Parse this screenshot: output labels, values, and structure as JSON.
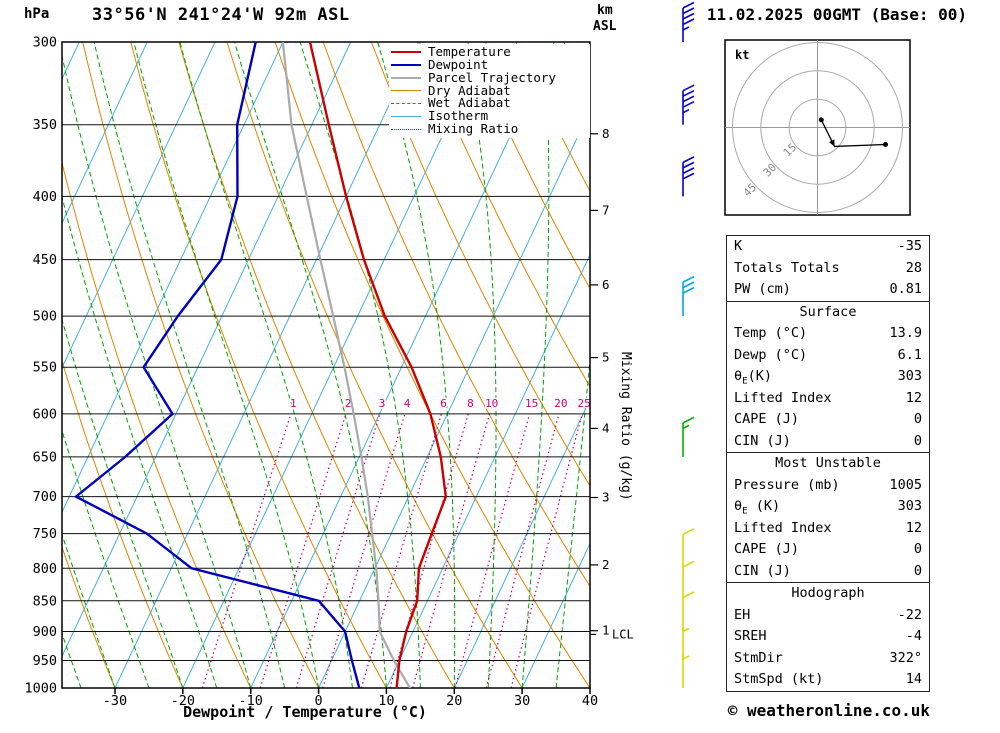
{
  "header": {
    "pressure_unit": "hPa",
    "station_title": "33°56'N 241°24'W 92m ASL",
    "km_label": "km",
    "asl_label": "ASL",
    "datetime": "11.02.2025 00GMT (Base: 00)"
  },
  "footer": {
    "xlabel": "Dewpoint / Temperature (°C)",
    "copyright": "© weatheronline.co.uk"
  },
  "legend": {
    "items": [
      {
        "label": "Temperature",
        "color": "#cc0000",
        "dash": "solid",
        "width": 2.5
      },
      {
        "label": "Dewpoint",
        "color": "#0000bb",
        "dash": "solid",
        "width": 2.5
      },
      {
        "label": "Parcel Trajectory",
        "color": "#aaaaaa",
        "dash": "solid",
        "width": 2.5
      },
      {
        "label": "Dry Adiabat",
        "color": "#dd8500",
        "dash": "solid",
        "width": 1.5
      },
      {
        "label": "Wet Adiabat",
        "color": "#00a300",
        "dash": "dashed",
        "width": 1.5
      },
      {
        "label": "Isotherm",
        "color": "#44b0e0",
        "dash": "solid",
        "width": 1.5
      },
      {
        "label": "Mixing Ratio",
        "color": "#cc0077",
        "dash": "dotted",
        "width": 1.5
      }
    ]
  },
  "chart_data": {
    "type": "skewt-log-p",
    "pressure_ticks_hpa": [
      300,
      350,
      400,
      450,
      500,
      550,
      600,
      650,
      700,
      750,
      800,
      850,
      900,
      950,
      1000
    ],
    "temp_ticks_c": [
      -30,
      -20,
      -10,
      0,
      10,
      20,
      30,
      40
    ],
    "km_asl_ticks": [
      1,
      2,
      3,
      4,
      5,
      6,
      7,
      8
    ],
    "lcl": {
      "label": "LCL",
      "pressure_hpa": 905
    },
    "mixing_ratio_label": "Mixing Ratio (g/kg)",
    "mixing_ratio_g_kg": [
      1,
      2,
      3,
      4,
      6,
      8,
      10,
      15,
      20,
      25
    ],
    "temperature_profile_p_c": [
      [
        1000,
        11.5
      ],
      [
        950,
        10
      ],
      [
        900,
        9
      ],
      [
        850,
        8.5
      ],
      [
        800,
        6.5
      ],
      [
        750,
        6
      ],
      [
        700,
        5.5
      ],
      [
        650,
        2
      ],
      [
        600,
        -2.5
      ],
      [
        550,
        -8.5
      ],
      [
        500,
        -16
      ],
      [
        450,
        -23
      ],
      [
        400,
        -30
      ],
      [
        350,
        -37.5
      ],
      [
        300,
        -46
      ]
    ],
    "dewpoint_profile_p_c": [
      [
        1000,
        6
      ],
      [
        950,
        3
      ],
      [
        900,
        0
      ],
      [
        850,
        -6
      ],
      [
        800,
        -27
      ],
      [
        750,
        -36
      ],
      [
        700,
        -49
      ],
      [
        650,
        -44.5
      ],
      [
        600,
        -40.5
      ],
      [
        550,
        -48
      ],
      [
        500,
        -46.5
      ],
      [
        450,
        -44
      ],
      [
        400,
        -46
      ],
      [
        350,
        -51
      ],
      [
        300,
        -54
      ]
    ],
    "parcel_profile_p_c": [
      [
        1005,
        13.9
      ],
      [
        950,
        9.2
      ],
      [
        900,
        5.1
      ],
      [
        850,
        2.8
      ],
      [
        800,
        0.2
      ],
      [
        750,
        -2.8
      ],
      [
        700,
        -6
      ],
      [
        650,
        -9.7
      ],
      [
        600,
        -13.8
      ],
      [
        550,
        -18.4
      ],
      [
        500,
        -23.6
      ],
      [
        450,
        -29.4
      ],
      [
        400,
        -35.8
      ],
      [
        350,
        -43
      ],
      [
        300,
        -50
      ]
    ],
    "wind_barbs": [
      {
        "p": 300,
        "kt": 45,
        "color": "#0000cc"
      },
      {
        "p": 350,
        "kt": 45,
        "color": "#0000cc"
      },
      {
        "p": 400,
        "kt": 40,
        "color": "#0000cc"
      },
      {
        "p": 500,
        "kt": 30,
        "color": "#00a8dd"
      },
      {
        "p": 650,
        "kt": 15,
        "color": "#00b300"
      },
      {
        "p": 800,
        "kt": 10,
        "color": "#d8d800"
      },
      {
        "p": 850,
        "kt": 10,
        "color": "#d8d800"
      },
      {
        "p": 900,
        "kt": 10,
        "color": "#d8d800"
      },
      {
        "p": 950,
        "kt": 5,
        "color": "#d8d800"
      },
      {
        "p": 1000,
        "kt": 5,
        "color": "#d8d800"
      }
    ],
    "colors": {
      "temperature": "#cc0000",
      "dewpoint": "#0000bb",
      "parcel": "#aaaaaa",
      "dry_adiabat": "#dd8500",
      "wet_adiabat": "#00a300",
      "isotherm": "#44b0e0",
      "mixing_ratio": "#cc0077",
      "isobar": "#111111"
    }
  },
  "hodograph": {
    "unit_label": "kt",
    "ring_radii_kt": [
      15,
      30,
      45
    ],
    "trace_points_kt": [
      [
        2,
        -4
      ],
      [
        9,
        10
      ],
      [
        36,
        9
      ]
    ],
    "dot_points_kt": [
      [
        2,
        -4
      ],
      [
        36,
        9
      ]
    ],
    "arrow_at_kt": [
      9,
      10
    ]
  },
  "table": {
    "sections": [
      {
        "rows": [
          {
            "label": "K",
            "value": "-35"
          },
          {
            "label": "Totals Totals",
            "value": "28"
          },
          {
            "label": "PW (cm)",
            "value": "0.81"
          }
        ]
      },
      {
        "header": "Surface",
        "rows": [
          {
            "label": "Temp (°C)",
            "value": "13.9"
          },
          {
            "label": "Dewp (°C)",
            "value": "6.1"
          },
          {
            "label": {
              "pre": "θ",
              "sub": "E",
              "post": "(K)"
            },
            "value": "303"
          },
          {
            "label": "Lifted Index",
            "value": "12"
          },
          {
            "label": "CAPE (J)",
            "value": "0"
          },
          {
            "label": "CIN (J)",
            "value": "0"
          }
        ]
      },
      {
        "header": "Most Unstable",
        "rows": [
          {
            "label": "Pressure (mb)",
            "value": "1005"
          },
          {
            "label": {
              "pre": "θ",
              "sub": "E",
              "post": " (K)"
            },
            "value": "303"
          },
          {
            "label": "Lifted Index",
            "value": "12"
          },
          {
            "label": "CAPE (J)",
            "value": "0"
          },
          {
            "label": "CIN (J)",
            "value": "0"
          }
        ]
      },
      {
        "header": "Hodograph",
        "rows": [
          {
            "label": "EH",
            "value": "-22"
          },
          {
            "label": "SREH",
            "value": "-4"
          },
          {
            "label": "StmDir",
            "value": "322°"
          },
          {
            "label": "StmSpd (kt)",
            "value": "14"
          }
        ]
      }
    ]
  }
}
